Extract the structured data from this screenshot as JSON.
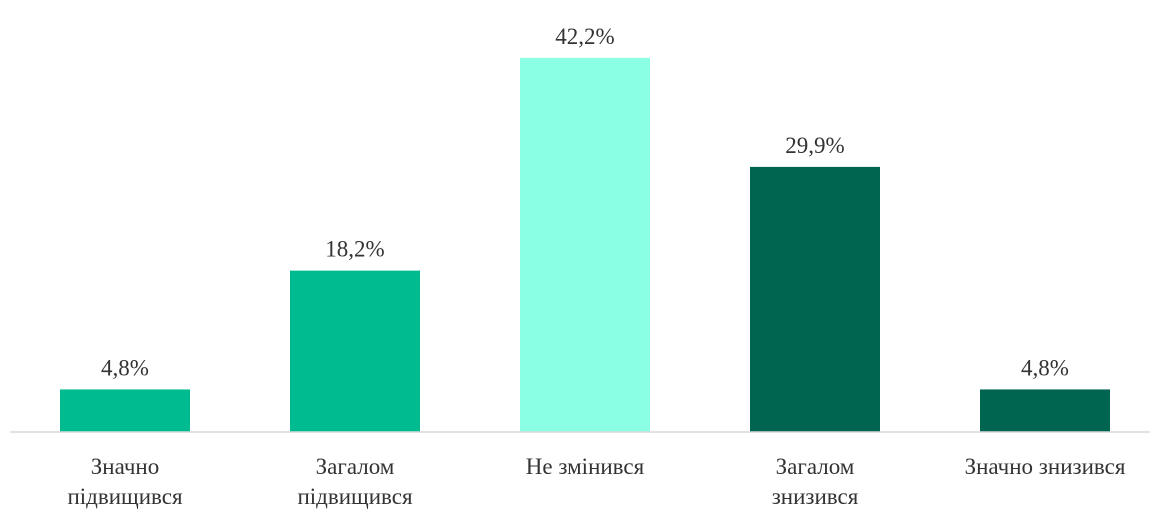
{
  "chart_data": {
    "type": "bar",
    "categories": [
      "Значно\nпідвищився",
      "Загалом\nпідвищився",
      "Не змінився",
      "Загалом\nзнизився",
      "Значно знизився"
    ],
    "values": [
      4.8,
      18.2,
      42.2,
      29.9,
      4.8
    ],
    "value_labels": [
      "4,8%",
      "18,2%",
      "42,2%",
      "29,9%",
      "4,8%"
    ],
    "colors": [
      "#00bb8f",
      "#00bb8f",
      "#8affe4",
      "#006550",
      "#006550"
    ],
    "ylim": [
      0,
      45
    ]
  }
}
